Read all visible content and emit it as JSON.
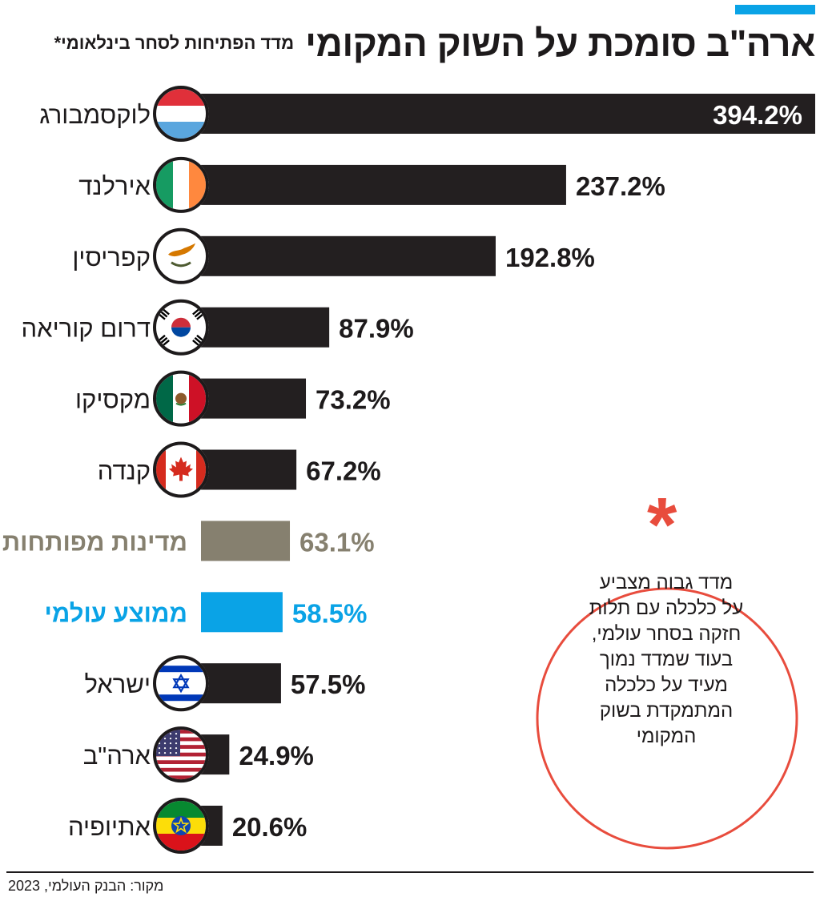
{
  "colors": {
    "bar": "#231f20",
    "developed": "#86806f",
    "world": "#0aa3e6",
    "accent": "#0aa3e6",
    "note_circle": "#e84c3d",
    "text": "#1d1a1b"
  },
  "header": {
    "title": "ארה\"ב סומכת על השוק המקומי",
    "subtitle": "מדד הפתיחות לסחר בינלאומי*"
  },
  "chart_data": {
    "type": "bar",
    "orientation": "horizontal",
    "title": "ארה\"ב סומכת על השוק המקומי",
    "subtitle": "מדד הפתיחות לסחר בינלאומי*",
    "unit": "%",
    "xlim": [
      0,
      394.2
    ],
    "grid": false,
    "legend": "none",
    "categories": [
      "לוקסמבורג",
      "אירלנד",
      "קפריסין",
      "דרום קוריאה",
      "מקסיקו",
      "קנדה",
      "מדינות מפותחות",
      "ממוצע עולמי",
      "ישראל",
      "ארה\"ב",
      "אתיופיה"
    ],
    "values": [
      394.2,
      237.2,
      192.8,
      87.9,
      73.2,
      67.2,
      63.1,
      58.5,
      57.5,
      24.9,
      20.6
    ],
    "labels": [
      "394.2%",
      "237.2%",
      "192.8%",
      "87.9%",
      "73.2%",
      "67.2%",
      "63.1%",
      "58.5%",
      "57.5%",
      "24.9%",
      "20.6%"
    ],
    "kinds": [
      "country",
      "country",
      "country",
      "country",
      "country",
      "country",
      "developed",
      "world",
      "country",
      "country",
      "country"
    ],
    "flags": [
      "luxembourg-flag-icon",
      "ireland-flag-icon",
      "cyprus-flag-icon",
      "south-korea-flag-icon",
      "mexico-flag-icon",
      "canada-flag-icon",
      "",
      "",
      "israel-flag-icon",
      "usa-flag-icon",
      "ethiopia-flag-icon"
    ]
  },
  "note": {
    "star": "*",
    "lines": [
      "מדד גבוה מצביע",
      "על כלכלה עם תלות",
      "חזקה בסחר עולמי,",
      "בעוד שמדד נמוך",
      "מעיד על כלכלה",
      "המתמקדת בשוק",
      "המקומי"
    ]
  },
  "footer": {
    "source": "מקור: הבנק העולמי, 2023"
  }
}
